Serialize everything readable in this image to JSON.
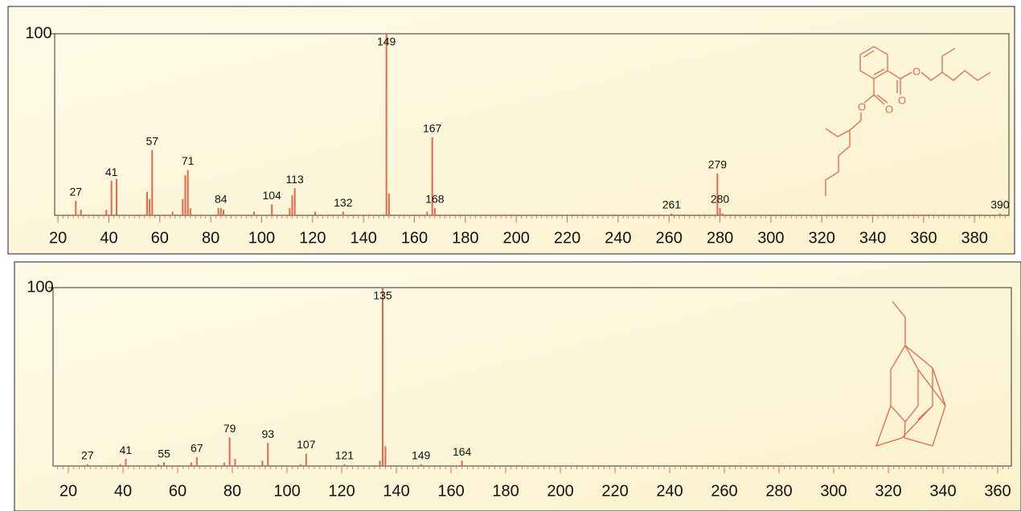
{
  "chart_data": [
    {
      "type": "bar",
      "color": "#e0694a",
      "series": [
        {
          "x": [
            27,
            41,
            57,
            71,
            84,
            104,
            113,
            132,
            149,
            167,
            168,
            261,
            279,
            280,
            390
          ],
          "values": [
            8,
            19,
            36,
            25,
            4,
            6,
            15,
            2,
            100,
            43,
            4,
            1,
            23,
            4,
            1
          ],
          "show_labels": true
        },
        {
          "x": [
            29,
            39,
            43,
            55,
            56,
            65,
            69,
            70,
            72,
            83,
            85,
            97,
            111,
            112,
            121,
            150,
            165,
            281
          ],
          "values": [
            3,
            3,
            20,
            13,
            9,
            2,
            9,
            22,
            4,
            4,
            3,
            2,
            4,
            11,
            2,
            12,
            2,
            1
          ],
          "show_labels": false
        }
      ],
      "xlim": [
        18.7,
        393.5
      ],
      "xticks": [
        20,
        40,
        60,
        80,
        100,
        120,
        140,
        160,
        180,
        200,
        220,
        240,
        260,
        280,
        300,
        320,
        340,
        360,
        380
      ],
      "ylim": [
        0,
        100
      ],
      "yticks": [
        100
      ],
      "minor_tick_step": 2,
      "structure_labels": [
        "O",
        "O",
        "O",
        "O"
      ]
    },
    {
      "type": "bar",
      "color": "#e0694a",
      "series": [
        {
          "x": [
            27,
            41,
            55,
            67,
            79,
            93,
            107,
            121,
            135,
            149,
            164
          ],
          "values": [
            1,
            4,
            2,
            5,
            16,
            13,
            7,
            1,
            100,
            1,
            3
          ],
          "show_labels": true
        },
        {
          "x": [
            39,
            53,
            65,
            77,
            81,
            91,
            105,
            134,
            136
          ],
          "values": [
            1,
            1,
            2,
            2,
            4,
            3,
            1,
            3,
            11
          ],
          "show_labels": false
        }
      ],
      "xlim": [
        14.4,
        365
      ],
      "xticks": [
        20,
        40,
        60,
        80,
        100,
        120,
        140,
        160,
        180,
        200,
        220,
        240,
        260,
        280,
        300,
        320,
        340,
        360
      ],
      "ylim": [
        0,
        100
      ],
      "yticks": [
        100
      ],
      "minor_tick_step": 2
    }
  ]
}
